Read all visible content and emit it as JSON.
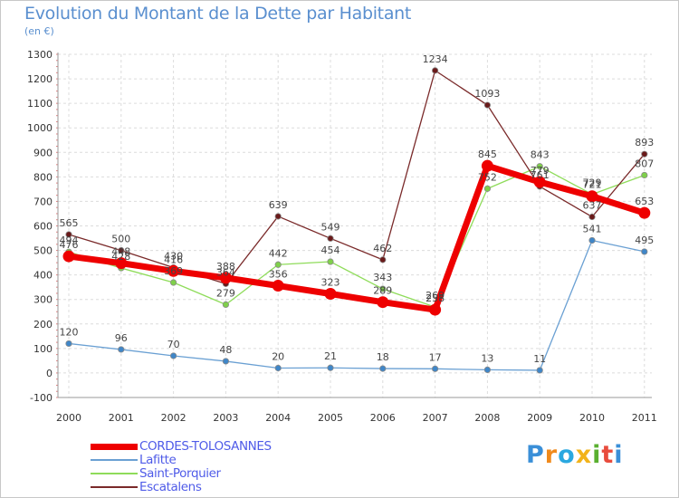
{
  "chart_data": {
    "type": "line",
    "title": "Evolution du Montant de la Dette par Habitant",
    "subtitle": "(en €)",
    "xlabel": "",
    "ylabel": "",
    "x": [
      "2000",
      "2001",
      "2002",
      "2003",
      "2004",
      "2005",
      "2006",
      "2007",
      "2008",
      "2009",
      "2010",
      "2011"
    ],
    "ylim": [
      -100,
      1300
    ],
    "yticks": [
      "-100",
      "0",
      "100",
      "200",
      "300",
      "400",
      "500",
      "600",
      "700",
      "800",
      "900",
      "1000",
      "1100",
      "1200",
      "1300"
    ],
    "grid": true,
    "series": [
      {
        "name": "CORDES-TOLOSANNES",
        "color": "#ee0000",
        "values": [
          476,
          448,
          416,
          388,
          356,
          323,
          289,
          258,
          845,
          779,
          721,
          653
        ],
        "labels": [
          "476",
          "448",
          "416",
          "388",
          "356",
          "323",
          "289",
          "258",
          "845",
          "779",
          "721",
          "653"
        ]
      },
      {
        "name": "Lafitte",
        "color": "#6aa0d3",
        "values": [
          120,
          96,
          70,
          48,
          20,
          21,
          18,
          17,
          13,
          11,
          541,
          495
        ],
        "labels": [
          "120",
          "96",
          "70",
          "48",
          "20",
          "21",
          "18",
          "17",
          "13",
          "11",
          "541",
          "495"
        ]
      },
      {
        "name": "Saint-Porquier",
        "color": "#8fdc5a",
        "values": [
          494,
          428,
          369,
          279,
          442,
          454,
          343,
          269,
          752,
          843,
          729,
          807
        ],
        "labels": [
          "494",
          "428",
          "369",
          "279",
          "442",
          "454",
          "343",
          "269",
          "752",
          "843",
          "729",
          "807"
        ]
      },
      {
        "name": "Escatalens",
        "color": "#7a2a2a",
        "values": [
          565,
          500,
          430,
          364,
          639,
          549,
          462,
          1234,
          1093,
          761,
          637,
          893
        ],
        "labels": [
          "565",
          "500",
          "430",
          "364",
          "639",
          "549",
          "462",
          "1234",
          "1093",
          "761",
          "637",
          "893"
        ]
      }
    ]
  },
  "legend": {
    "items": [
      {
        "label": "CORDES-TOLOSANNES",
        "color": "#ee0000"
      },
      {
        "label": "Lafitte",
        "color": "#6aa0d3"
      },
      {
        "label": "Saint-Porquier",
        "color": "#8fdc5a"
      },
      {
        "label": "Escatalens",
        "color": "#7a2a2a"
      }
    ]
  },
  "logo": {
    "text": "Proxiti",
    "letters": [
      "P",
      "r",
      "o",
      "x",
      "i",
      "t",
      "i"
    ],
    "colors": [
      "#3a8fd8",
      "#f08a1c",
      "#2aa8e0",
      "#f2b31a",
      "#5ab030",
      "#e84c3d",
      "#3a8fd8"
    ]
  }
}
